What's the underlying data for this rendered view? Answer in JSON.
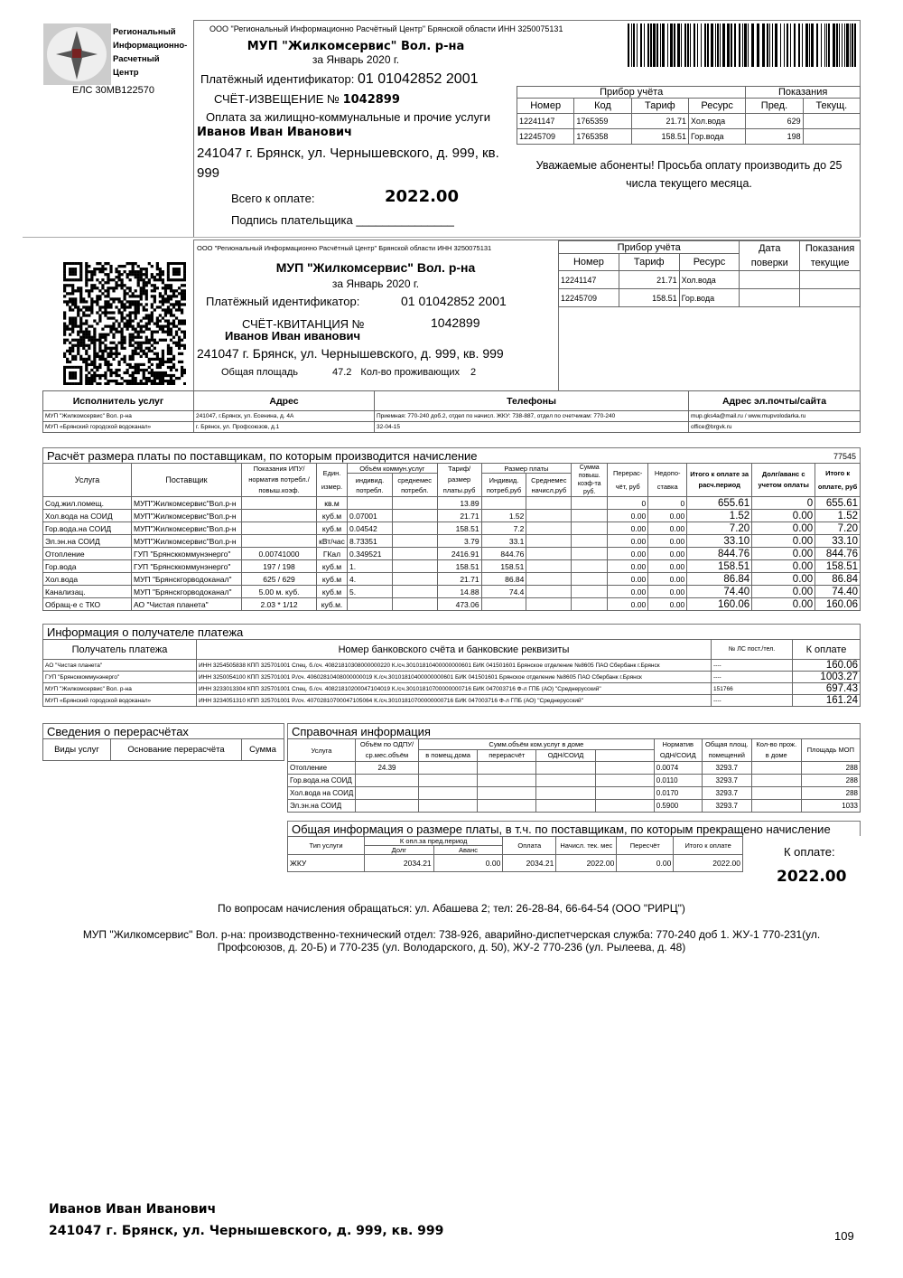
{
  "logo": {
    "lines": [
      "Региональный",
      "Информационно-",
      "Расчетный",
      "Центр"
    ],
    "els": "ЕЛС 30МВ122570"
  },
  "notice": {
    "org": "ООО \"Региональный Информационно Расчётный Центр\" Брянской области ИНН 3250075131",
    "company": "МУП \"Жилкомсервис\" Вол. р-на",
    "period": "за Январь 2020 г.",
    "pay_id_label": "Платёжный идентификатор:",
    "pay_id": "01 01042852 2001",
    "doc_label": "СЧЁТ-ИЗВЕЩЕНИЕ №",
    "doc_no": "1042899",
    "purpose": "Оплата за жилищно-коммунальные и прочие услуги",
    "payer": "Иванов Иван Иванович",
    "address": "241047 г. Брянск, ул. Чернышевского, д. 999, кв. 999",
    "total_label": "Всего к оплате:",
    "total": "2022.00",
    "sign_label": "Подпись плательщика _______________",
    "meters_header": {
      "device": "Прибор учёта",
      "readings": "Показания",
      "cols": [
        "Номер",
        "Код",
        "Тариф",
        "Ресурс",
        "Пред.",
        "Текущ."
      ]
    },
    "meters": [
      [
        "12241147",
        "1765359",
        "21.71",
        "Хол.вода",
        "629",
        ""
      ],
      [
        "12245709",
        "1765358",
        "158.51",
        "Гор.вода",
        "198",
        ""
      ]
    ],
    "message": "Уважаемые абоненты! Просьба оплату производить до 25 числа текущего месяца."
  },
  "receipt": {
    "org": "ООО \"Региональный Информационно Расчётный Центр\" Брянской области ИНН 3250075131",
    "company": "МУП \"Жилкомсервис\" Вол. р-на",
    "period": "за Январь 2020 г.",
    "pay_id_label": "Платёжный идентификатор:",
    "pay_id": "01 01042852 2001",
    "doc_label": "СЧЁТ-КВИТАНЦИЯ №",
    "doc_no": "1042899",
    "payer": "Иванов Иван иванович",
    "address": "241047 г. Брянск, ул. Чернышевского, д. 999, кв. 999",
    "area_label": "Общая площадь",
    "area": "47.2",
    "residents_label": "Кол-во проживающих",
    "residents": "2",
    "meters_header": {
      "device": "Прибор учёта",
      "date": "Дата поверки",
      "readings": "Показания текущие",
      "cols": [
        "Номер",
        "Тариф",
        "Ресурс"
      ]
    },
    "meters": [
      [
        "12241147",
        "21.71",
        "Хол.вода",
        "",
        ""
      ],
      [
        "12245709",
        "158.51",
        "Гор.вода",
        "",
        ""
      ]
    ]
  },
  "providers": {
    "cols": [
      "Исполнитель услуг",
      "Адрес",
      "Телефоны",
      "Адрес эл.почты/сайта"
    ],
    "rows": [
      [
        "МУП \"Жилкомсервис\" Вол. р-на",
        "241047, г.Брянск, ул. Есенина, д. 4А",
        "Приемная: 770-240 доб.2, отдел по начисл. ЖКУ: 738-887, отдел по счетчикам: 770-240",
        "mup.gks4a@mail.ru  /  www.mupvolodarka.ru"
      ],
      [
        "МУП «Брянский городской водоканал»",
        "г. Брянск, ул. Профсоюзов, д.1",
        "32-04-15",
        "office@brgvk.ru"
      ]
    ]
  },
  "calc": {
    "title": "Расчёт размера платы по поставщикам, по которым производится начисление",
    "code": "77545",
    "h": {
      "service": "Услуга",
      "supplier": "Поставщик",
      "ipu": "Показания ИПУ/ норматив потребл./ повыш.коэф.",
      "unit": "Един. измер.",
      "volume": "Объём коммун.услуг",
      "vol_ind": "индивид. потребл.",
      "vol_avg": "среднемес потребл.",
      "tariff": "Тариф/ размер платы.руб",
      "fee": "Размер платы",
      "fee_ind": "Индивид. потреб,руб",
      "fee_avg": "Среднемес начисл,руб",
      "coef": "Сумма повыш. коэф-та руб.",
      "recalc": "Перерас- чёт, руб",
      "short": "Недопо- ставка",
      "total_period": "Итого к оплате за расч.период",
      "debt": "Долг/аванс с учетом оплаты",
      "total": "Итого к оплате, руб"
    },
    "rows": [
      [
        "Сод.жил.помещ.",
        "МУП\"Жилкомсервис\"Вол.р-н",
        "",
        "кв.м",
        "",
        "",
        "13.89",
        "",
        "",
        "",
        "0",
        "0",
        "655.61",
        "0",
        "655.61"
      ],
      [
        "Хол.вода на СОИД",
        "МУП\"Жилкомсервис\"Вол.р-н",
        "",
        "куб.м",
        "0.07001",
        "",
        "21.71",
        "1.52",
        "",
        "",
        "0.00",
        "0.00",
        "1.52",
        "0.00",
        "1.52"
      ],
      [
        "Гор.вода.на СОИД",
        "МУП\"Жилкомсервис\"Вол.р-н",
        "",
        "куб.м",
        "0.04542",
        "",
        "158.51",
        "7.2",
        "",
        "",
        "0.00",
        "0.00",
        "7.20",
        "0.00",
        "7.20"
      ],
      [
        "Эл.эн.на СОИД",
        "МУП\"Жилкомсервис\"Вол.р-н",
        "",
        "кВт/час",
        "8.73351",
        "",
        "3.79",
        "33.1",
        "",
        "",
        "0.00",
        "0.00",
        "33.10",
        "0.00",
        "33.10"
      ],
      [
        "Отопление",
        "ГУП \"Брянсккоммунэнерго\"",
        "0.00741000",
        "ГКал",
        "0.349521",
        "",
        "2416.91",
        "844.76",
        "",
        "",
        "0.00",
        "0.00",
        "844.76",
        "0.00",
        "844.76"
      ],
      [
        "Гор.вода",
        "ГУП \"Брянсккоммунэнерго\"",
        "197 /  198",
        "куб.м",
        "1.",
        "",
        "158.51",
        "158.51",
        "",
        "",
        "0.00",
        "0.00",
        "158.51",
        "0.00",
        "158.51"
      ],
      [
        "Хол.вода",
        "МУП \"Брянскгорводоканал\"",
        "625 /  629",
        "куб.м",
        "4.",
        "",
        "21.71",
        "86.84",
        "",
        "",
        "0.00",
        "0.00",
        "86.84",
        "0.00",
        "86.84"
      ],
      [
        "Канализац.",
        "МУП \"Брянскгорводоканал\"",
        "5.00 м. куб.",
        "куб.м",
        "5.",
        "",
        "14.88",
        "74.4",
        "",
        "",
        "0.00",
        "0.00",
        "74.40",
        "0.00",
        "74.40"
      ],
      [
        "Обращ-е с ТКО",
        "АО \"Чистая планета\"",
        "2.03 * 1/12",
        "куб.м.",
        "",
        "",
        "473.06",
        "",
        "",
        "",
        "0.00",
        "0.00",
        "160.06",
        "0.00",
        "160.06"
      ]
    ]
  },
  "recipients": {
    "title": "Информация о получателе платежа",
    "cols": [
      "Получатель платежа",
      "Номер банковского счёта и банковские реквизиты",
      "№ ЛС пост./тел.",
      "К оплате"
    ],
    "rows": [
      [
        "АО \"Чистая планета\"",
        "ИНН 3254505838 КПП 325701001 Спец. б./сч. 40821810308000000220 К./сч.30101810400000000601 БИК  041501601 Брянское отделение №8605 ПАО Сбербанк г.Брянск",
        "----",
        "160.06"
      ],
      [
        "ГУП \"Брянсккоммунэнерго\"",
        "ИНН 3250054100 КПП 325701001 Р./сч. 40602810408000000019 К./сч.30101810400000000601 БИК  041501601 Брянское отделение №8605 ПАО Сбербанк г.Брянск",
        "----",
        "1003.27"
      ],
      [
        "МУП \"Жилкомсервис\" Вол. р-на",
        "ИНН 3233013304 КПП 325701001 Спец. б./сч. 40821810200047104019 К./сч.30101810700000000716 БИК  047003716 Ф-л ГПБ (АО) \"Среднерусский\"",
        "151766",
        "697.43"
      ],
      [
        "МУП «Брянский городской водоканал»",
        "ИНН 3234051310 КПП 325701001 Р./сч. 40702810700047105064 К./сч.30101810700000000716 БИК  047003716 Ф-л ГПБ (АО) \"Среднерусский\"",
        "----",
        "161.24"
      ]
    ]
  },
  "recalcs": {
    "title": "Сведения о перерасчётах",
    "cols": [
      "Виды услуг",
      "Основание перерасчёта",
      "Сумма"
    ]
  },
  "reference": {
    "title": "Справочная информация",
    "h": {
      "service": "Услуга",
      "odpu": "Объём по ОДПУ/ ср.мес.объём",
      "sum": "Сумм.объём ком.услуг в доме",
      "in_rooms": "в помещ.дома",
      "recalc": "перерасчёт",
      "odn": "ОДН/СОИД",
      "norm": "Норматив ОДН/СОИД",
      "area": "Общая площ. помещений",
      "residents": "Кол-во прож. в доме",
      "mop": "Площадь МОП"
    },
    "rows": [
      [
        "Отопление",
        "24.39",
        "",
        "",
        "",
        "",
        "0.0074",
        "3293.7",
        "",
        "288"
      ],
      [
        "Гор.вода.на СОИД",
        "",
        "",
        "",
        "",
        "",
        "0.0110",
        "3293.7",
        "",
        "288"
      ],
      [
        "Хол.вода на СОИД",
        "",
        "",
        "",
        "",
        "",
        "0.0170",
        "3293.7",
        "",
        "288"
      ],
      [
        "Эл.эн.на СОИД",
        "",
        "",
        "",
        "",
        "",
        "0.5900",
        "3293.7",
        "",
        "1033"
      ]
    ]
  },
  "general": {
    "title": "Общая информация о размере платы, в т.ч. по поставщикам, по которым прекращено начисление",
    "h": {
      "type": "Тип услуги",
      "prev": "К опл.за пред.период",
      "debt": "Долг",
      "advance": "Аванс",
      "paid": "Оплата",
      "charged": "Начисл. тек. мес",
      "recalc": "Пересчёт",
      "total": "Итого к оплате"
    },
    "rows": [
      [
        "ЖКУ",
        "2034.21",
        "0.00",
        "2034.21",
        "2022.00",
        "0.00",
        "2022.00"
      ]
    ],
    "to_pay_label": "К оплате:",
    "to_pay": "2022.00"
  },
  "footer": {
    "contacts": "По вопросам начисления обращаться: ул. Абашева 2; тел: 26-28-84, 66-64-54 (ООО \"РИРЦ\")",
    "company_info": "МУП \"Жилкомсервис\" Вол. р-на: производственно-технический отдел: 738-926, аварийно-диспетчерская служба: 770-240 доб 1. ЖУ-1 770-231(ул. Профсоюзов, д. 20-Б) и 770-235 (ул. Володарского, д. 50), ЖУ-2 770-236 (ул. Рылеева, д. 48)",
    "name": "Иванов Иван Иванович",
    "address": "241047 г. Брянск, ул. Чернышевского, д. 999, кв. 999",
    "page": "109"
  }
}
